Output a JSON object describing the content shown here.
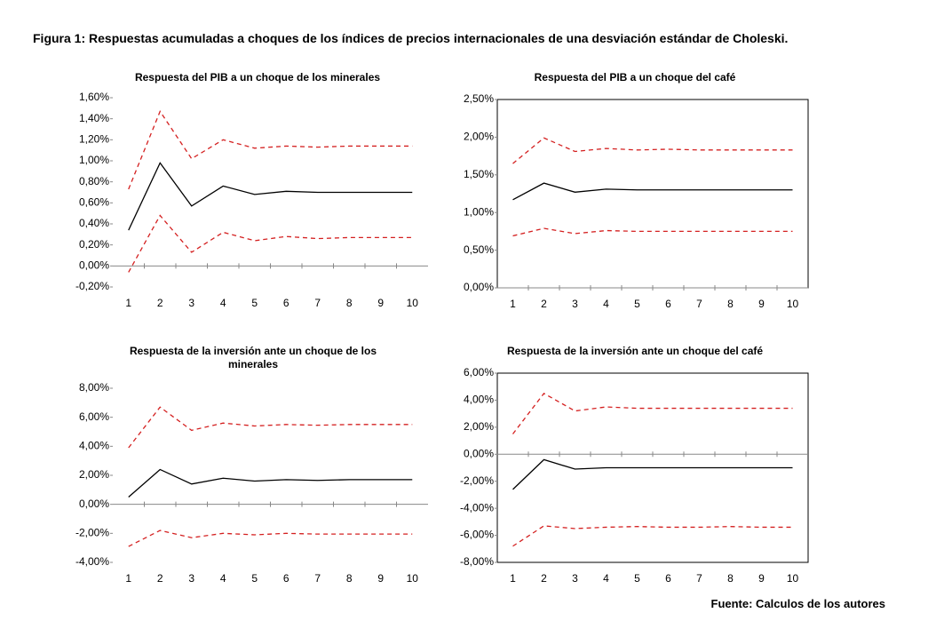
{
  "figure_title": "Figura 1: Respuestas acumuladas a choques de los índices de precios internacionales de una desviación estándar de Choleski.",
  "source": "Fuente: Calculos de los autores",
  "chart_data": [
    {
      "type": "line",
      "title": "Respuesta del PIB a un choque de los minerales",
      "frame": false,
      "categories": [
        "1",
        "2",
        "3",
        "4",
        "5",
        "6",
        "7",
        "8",
        "9",
        "10"
      ],
      "ylim": [
        -0.2,
        1.6
      ],
      "yticks": [
        {
          "value": -0.2,
          "label": "-0,20%"
        },
        {
          "value": 0,
          "label": "0,00%"
        },
        {
          "value": 0.2,
          "label": "0,20%"
        },
        {
          "value": 0.4,
          "label": "0,40%"
        },
        {
          "value": 0.6,
          "label": "0,60%"
        },
        {
          "value": 0.8,
          "label": "0,80%"
        },
        {
          "value": 1.0,
          "label": "1,00%"
        },
        {
          "value": 1.2,
          "label": "1,20%"
        },
        {
          "value": 1.4,
          "label": "1,40%"
        },
        {
          "value": 1.6,
          "label": "1,60%"
        }
      ],
      "series": [
        {
          "color": "#d42020",
          "dash": true,
          "values": [
            0.73,
            1.47,
            1.02,
            1.2,
            1.12,
            1.14,
            1.13,
            1.14,
            1.14,
            1.14
          ]
        },
        {
          "color": "#000000",
          "dash": false,
          "values": [
            0.34,
            0.98,
            0.57,
            0.76,
            0.68,
            0.71,
            0.7,
            0.7,
            0.7,
            0.7
          ]
        },
        {
          "color": "#d42020",
          "dash": true,
          "values": [
            -0.06,
            0.48,
            0.13,
            0.32,
            0.24,
            0.28,
            0.26,
            0.27,
            0.27,
            0.27
          ]
        }
      ]
    },
    {
      "type": "line",
      "title": "Respuesta del PIB a un choque del café",
      "frame": true,
      "categories": [
        "1",
        "2",
        "3",
        "4",
        "5",
        "6",
        "7",
        "8",
        "9",
        "10"
      ],
      "ylim": [
        0,
        2.5
      ],
      "yticks": [
        {
          "value": 0,
          "label": "0,00%"
        },
        {
          "value": 0.5,
          "label": "0,50%"
        },
        {
          "value": 1.0,
          "label": "1,00%"
        },
        {
          "value": 1.5,
          "label": "1,50%"
        },
        {
          "value": 2.0,
          "label": "2,00%"
        },
        {
          "value": 2.5,
          "label": "2,50%"
        }
      ],
      "series": [
        {
          "color": "#d42020",
          "dash": true,
          "values": [
            1.65,
            1.99,
            1.81,
            1.85,
            1.83,
            1.84,
            1.83,
            1.83,
            1.83,
            1.83
          ]
        },
        {
          "color": "#000000",
          "dash": false,
          "values": [
            1.17,
            1.39,
            1.27,
            1.31,
            1.3,
            1.3,
            1.3,
            1.3,
            1.3,
            1.3
          ]
        },
        {
          "color": "#d42020",
          "dash": true,
          "values": [
            0.69,
            0.79,
            0.72,
            0.76,
            0.75,
            0.75,
            0.75,
            0.75,
            0.75,
            0.75
          ]
        }
      ]
    },
    {
      "type": "line",
      "title": "Respuesta de la inversión ante un choque de los minerales",
      "frame": false,
      "categories": [
        "1",
        "2",
        "3",
        "4",
        "5",
        "6",
        "7",
        "8",
        "9",
        "10"
      ],
      "ylim": [
        -4,
        8
      ],
      "yticks": [
        {
          "value": -4,
          "label": "-4,00%"
        },
        {
          "value": -2,
          "label": "-2,00%"
        },
        {
          "value": 0,
          "label": "0,00%"
        },
        {
          "value": 2,
          "label": "2,00%"
        },
        {
          "value": 4,
          "label": "4,00%"
        },
        {
          "value": 6,
          "label": "6,00%"
        },
        {
          "value": 8,
          "label": "8,00%"
        }
      ],
      "series": [
        {
          "color": "#d42020",
          "dash": true,
          "values": [
            3.9,
            6.7,
            5.1,
            5.6,
            5.4,
            5.5,
            5.45,
            5.5,
            5.5,
            5.5
          ]
        },
        {
          "color": "#000000",
          "dash": false,
          "values": [
            0.5,
            2.4,
            1.4,
            1.8,
            1.6,
            1.7,
            1.65,
            1.7,
            1.7,
            1.7
          ]
        },
        {
          "color": "#d42020",
          "dash": true,
          "values": [
            -2.9,
            -1.8,
            -2.3,
            -2.0,
            -2.1,
            -2.0,
            -2.05,
            -2.05,
            -2.05,
            -2.05
          ]
        }
      ]
    },
    {
      "type": "line",
      "title": "Respuesta de la inversión ante un choque del café",
      "frame": true,
      "categories": [
        "1",
        "2",
        "3",
        "4",
        "5",
        "6",
        "7",
        "8",
        "9",
        "10"
      ],
      "ylim": [
        -8,
        6
      ],
      "yticks": [
        {
          "value": -8,
          "label": "-8,00%"
        },
        {
          "value": -6,
          "label": "-6,00%"
        },
        {
          "value": -4,
          "label": "-4,00%"
        },
        {
          "value": -2,
          "label": "-2,00%"
        },
        {
          "value": 0,
          "label": "0,00%"
        },
        {
          "value": 2,
          "label": "2,00%"
        },
        {
          "value": 4,
          "label": "4,00%"
        },
        {
          "value": 6,
          "label": "6,00%"
        }
      ],
      "series": [
        {
          "color": "#d42020",
          "dash": true,
          "values": [
            1.5,
            4.5,
            3.2,
            3.5,
            3.4,
            3.4,
            3.4,
            3.4,
            3.4,
            3.4
          ]
        },
        {
          "color": "#000000",
          "dash": false,
          "values": [
            -2.6,
            -0.4,
            -1.1,
            -1.0,
            -1.0,
            -1.0,
            -1.0,
            -1.0,
            -1.0,
            -1.0
          ]
        },
        {
          "color": "#d42020",
          "dash": true,
          "values": [
            -6.8,
            -5.3,
            -5.5,
            -5.4,
            -5.35,
            -5.4,
            -5.4,
            -5.35,
            -5.4,
            -5.4
          ]
        }
      ]
    }
  ]
}
